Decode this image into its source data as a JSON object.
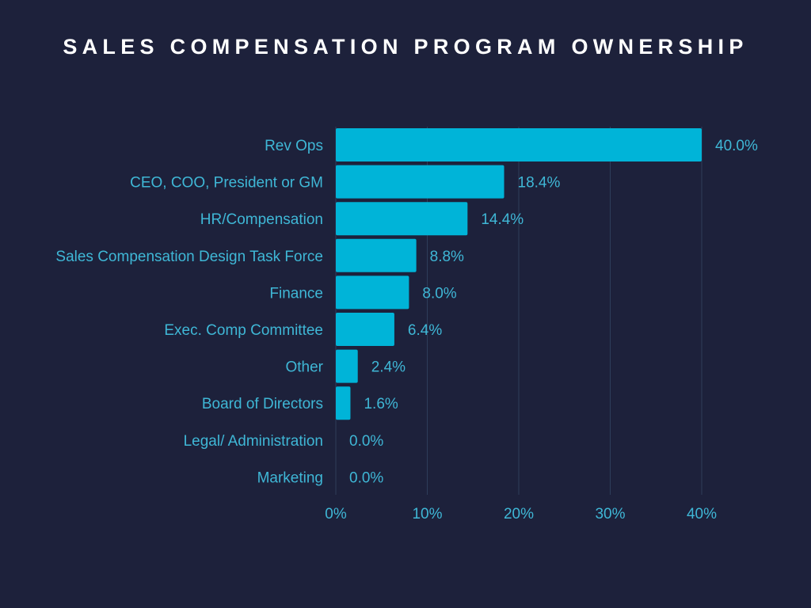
{
  "colors": {
    "background": "#1d213b",
    "bar": "#00b4d8",
    "text": "#3fb7d6",
    "title": "#ffffff",
    "grid": "#2e3d5a"
  },
  "chart_data": {
    "type": "bar",
    "orientation": "horizontal",
    "title": "SALES COMPENSATION PROGRAM OWNERSHIP",
    "xlabel": "",
    "ylabel": "",
    "categories": [
      "Rev Ops",
      "CEO, COO, President or GM",
      "HR/Compensation",
      "Sales Compensation Design Task Force",
      "Finance",
      "Exec. Comp Committee",
      "Other",
      "Board of Directors",
      "Legal/ Administration",
      "Marketing"
    ],
    "values": [
      40.0,
      18.4,
      14.4,
      8.8,
      8.0,
      6.4,
      2.4,
      1.6,
      0.0,
      0.0
    ],
    "value_labels": [
      "40.0%",
      "18.4%",
      "14.4%",
      "8.8%",
      "8.0%",
      "6.4%",
      "2.4%",
      "1.6%",
      "0.0%",
      "0.0%"
    ],
    "xticks": [
      0,
      10,
      20,
      30,
      40
    ],
    "xtick_labels": [
      "0%",
      "10%",
      "20%",
      "30%",
      "40%"
    ],
    "xlim": [
      0,
      40
    ],
    "grid": true,
    "legend": "none"
  }
}
